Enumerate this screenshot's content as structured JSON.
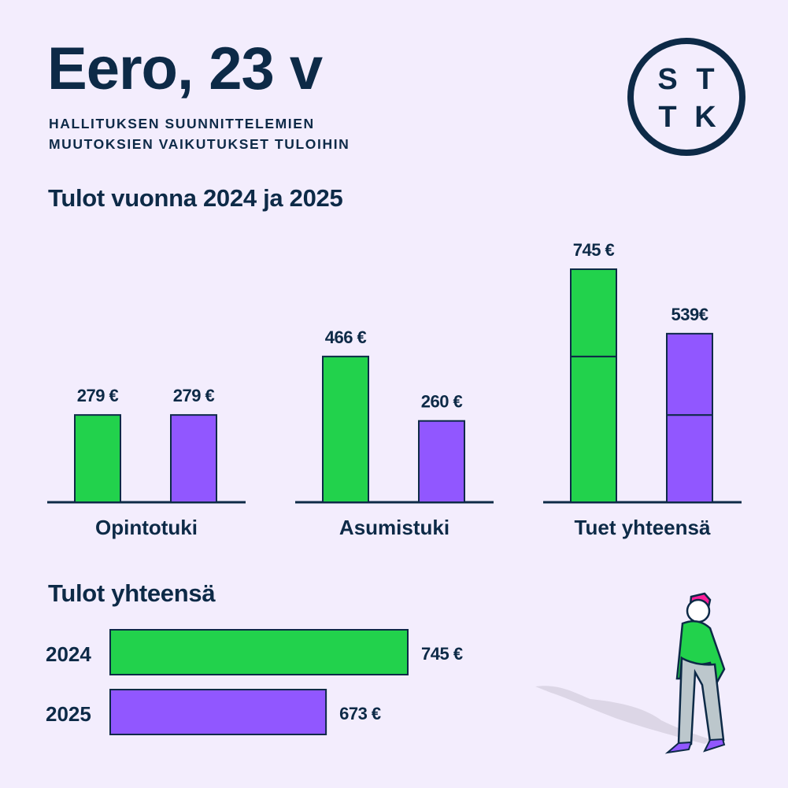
{
  "header": {
    "title": "Eero, 23 v",
    "subtitle_line1": "HALLITUKSEN SUUNNITTELEMIEN",
    "subtitle_line2": "MUUTOKSIEN VAIKUTUKSET TULOIHIN",
    "logo_letters": [
      "S",
      "T",
      "T",
      "K"
    ]
  },
  "colors": {
    "background": "#f3edfd",
    "y2024": "#22d24c",
    "y2025": "#9157ff",
    "ink": "#0d2a47"
  },
  "chart_data": [
    {
      "type": "bar",
      "title": "Tulot vuonna 2024 ja 2025",
      "categories": [
        "Opintotuki",
        "Asumistuki",
        "Tuet yhteensä"
      ],
      "series": [
        {
          "name": "2024",
          "values": [
            279,
            466,
            745
          ],
          "labels": [
            "279 €",
            "466 €",
            "745 €"
          ]
        },
        {
          "name": "2025",
          "values": [
            279,
            260,
            539
          ],
          "labels": [
            "279 €",
            "260 €",
            "539€"
          ]
        }
      ],
      "stacked_segments": {
        "2024": [
          466,
          279
        ],
        "2025": [
          279,
          260
        ]
      },
      "ylim": [
        0,
        800
      ],
      "unit": "€"
    },
    {
      "type": "bar",
      "orientation": "horizontal",
      "title": "Tulot yhteensä",
      "categories": [
        "2024",
        "2025"
      ],
      "values": [
        745,
        673
      ],
      "labels": [
        "745 €",
        "673 €"
      ],
      "xlim": [
        483,
        745
      ],
      "unit": "€"
    }
  ]
}
